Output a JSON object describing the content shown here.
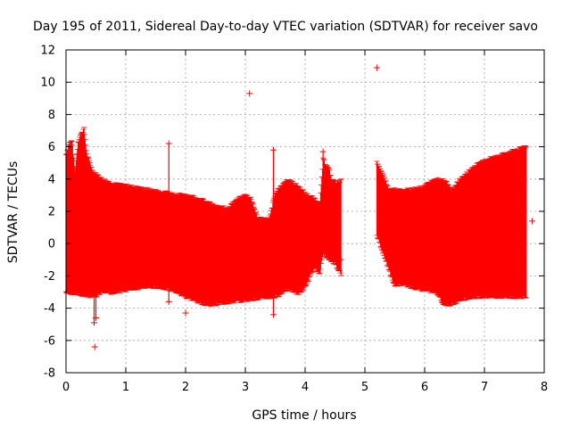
{
  "chart_data": {
    "type": "scatter",
    "title": "Day 195 of 2011, Sidereal Day-to-day VTEC variation (SDTVAR) for receiver savo",
    "xlabel": "GPS time / hours",
    "ylabel": "SDTVAR / TECUs",
    "xlim": [
      0,
      8
    ],
    "ylim": [
      -8,
      12
    ],
    "x_ticks": [
      0,
      1,
      2,
      3,
      4,
      5,
      6,
      7,
      8
    ],
    "x_tick_labels": [
      "0",
      "1",
      "2",
      "3",
      "4",
      "5",
      "6",
      "7",
      "8"
    ],
    "y_ticks": [
      -8,
      -6,
      -4,
      -2,
      0,
      2,
      4,
      6,
      8,
      10,
      12
    ],
    "y_tick_labels": [
      "-8",
      "-6",
      "-4",
      "-2",
      "0",
      "2",
      "4",
      "6",
      "8",
      "10",
      "12"
    ],
    "grid": true,
    "series": [
      {
        "name": "SDTVAR",
        "marker": "plus",
        "description": "dense per-epoch values with error bars; envelope of upper and lower extents",
        "upper_envelope": [
          [
            0.0,
            5.5
          ],
          [
            0.05,
            6.2
          ],
          [
            0.1,
            6.4
          ],
          [
            0.15,
            4.4
          ],
          [
            0.2,
            6.3
          ],
          [
            0.25,
            6.8
          ],
          [
            0.3,
            7.1
          ],
          [
            0.35,
            5.5
          ],
          [
            0.45,
            4.5
          ],
          [
            0.6,
            4.0
          ],
          [
            0.8,
            3.7
          ],
          [
            1.0,
            3.6
          ],
          [
            1.3,
            3.4
          ],
          [
            1.6,
            3.2
          ],
          [
            2.0,
            3.0
          ],
          [
            2.3,
            2.7
          ],
          [
            2.5,
            2.3
          ],
          [
            2.7,
            2.2
          ],
          [
            2.85,
            2.7
          ],
          [
            3.0,
            3.0
          ],
          [
            3.1,
            2.8
          ],
          [
            3.2,
            1.6
          ],
          [
            3.4,
            1.5
          ],
          [
            3.5,
            3.1
          ],
          [
            3.7,
            4.0
          ],
          [
            3.9,
            3.5
          ],
          [
            4.0,
            3.1
          ],
          [
            4.15,
            2.8
          ],
          [
            4.25,
            2.5
          ],
          [
            4.3,
            5.2
          ],
          [
            4.4,
            4.6
          ],
          [
            4.45,
            3.9
          ],
          [
            4.55,
            3.8
          ],
          [
            4.6,
            3.9
          ]
        ],
        "lower_envelope": [
          [
            0.0,
            -3.0
          ],
          [
            0.3,
            -3.2
          ],
          [
            0.5,
            -3.3
          ],
          [
            0.6,
            -2.9
          ],
          [
            0.8,
            -3.1
          ],
          [
            0.95,
            -2.9
          ],
          [
            1.0,
            -2.9
          ],
          [
            1.1,
            -2.8
          ],
          [
            1.3,
            -2.7
          ],
          [
            1.6,
            -2.7
          ],
          [
            1.8,
            -2.9
          ],
          [
            2.0,
            -3.3
          ],
          [
            2.2,
            -3.6
          ],
          [
            2.4,
            -3.8
          ],
          [
            2.6,
            -3.7
          ],
          [
            2.8,
            -3.6
          ],
          [
            3.0,
            -3.5
          ],
          [
            3.2,
            -3.4
          ],
          [
            3.5,
            -3.3
          ],
          [
            3.7,
            -2.8
          ],
          [
            3.9,
            -3.1
          ],
          [
            4.0,
            -2.7
          ],
          [
            4.15,
            -1.5
          ],
          [
            4.25,
            -1.8
          ],
          [
            4.3,
            -0.6
          ],
          [
            4.4,
            -1.0
          ],
          [
            4.5,
            -1.2
          ],
          [
            4.6,
            -1.9
          ]
        ],
        "upper_envelope_2": [
          [
            5.2,
            5.1
          ],
          [
            5.4,
            3.4
          ],
          [
            5.6,
            3.3
          ],
          [
            5.8,
            3.4
          ],
          [
            6.0,
            3.6
          ],
          [
            6.2,
            4.0
          ],
          [
            6.35,
            3.9
          ],
          [
            6.45,
            3.3
          ],
          [
            6.6,
            4.0
          ],
          [
            6.8,
            4.7
          ],
          [
            7.0,
            5.2
          ],
          [
            7.3,
            5.5
          ],
          [
            7.5,
            5.8
          ],
          [
            7.7,
            6.0
          ]
        ],
        "lower_envelope_2": [
          [
            5.2,
            0.5
          ],
          [
            5.3,
            -0.5
          ],
          [
            5.4,
            -1.6
          ],
          [
            5.5,
            -2.6
          ],
          [
            5.6,
            -2.5
          ],
          [
            5.8,
            -2.7
          ],
          [
            6.0,
            -2.9
          ],
          [
            6.2,
            -3.0
          ],
          [
            6.3,
            -3.7
          ],
          [
            6.45,
            -3.8
          ],
          [
            6.6,
            -3.5
          ],
          [
            6.8,
            -3.3
          ],
          [
            7.0,
            -3.3
          ],
          [
            7.3,
            -3.3
          ],
          [
            7.5,
            -3.3
          ],
          [
            7.7,
            -3.3
          ]
        ],
        "spikes": [
          [
            0.47,
            -4.9
          ],
          [
            0.5,
            -4.6
          ],
          [
            1.72,
            6.2
          ],
          [
            1.72,
            -3.6
          ],
          [
            1.9,
            -3.1
          ],
          [
            3.47,
            5.8
          ],
          [
            3.47,
            -4.4
          ],
          [
            4.3,
            5.7
          ]
        ],
        "outliers": [
          [
            0.48,
            -6.4
          ],
          [
            3.07,
            9.3
          ],
          [
            5.2,
            10.9
          ],
          [
            2.0,
            -4.3
          ],
          [
            4.6,
            -1.0
          ],
          [
            7.8,
            1.4
          ]
        ]
      }
    ]
  }
}
